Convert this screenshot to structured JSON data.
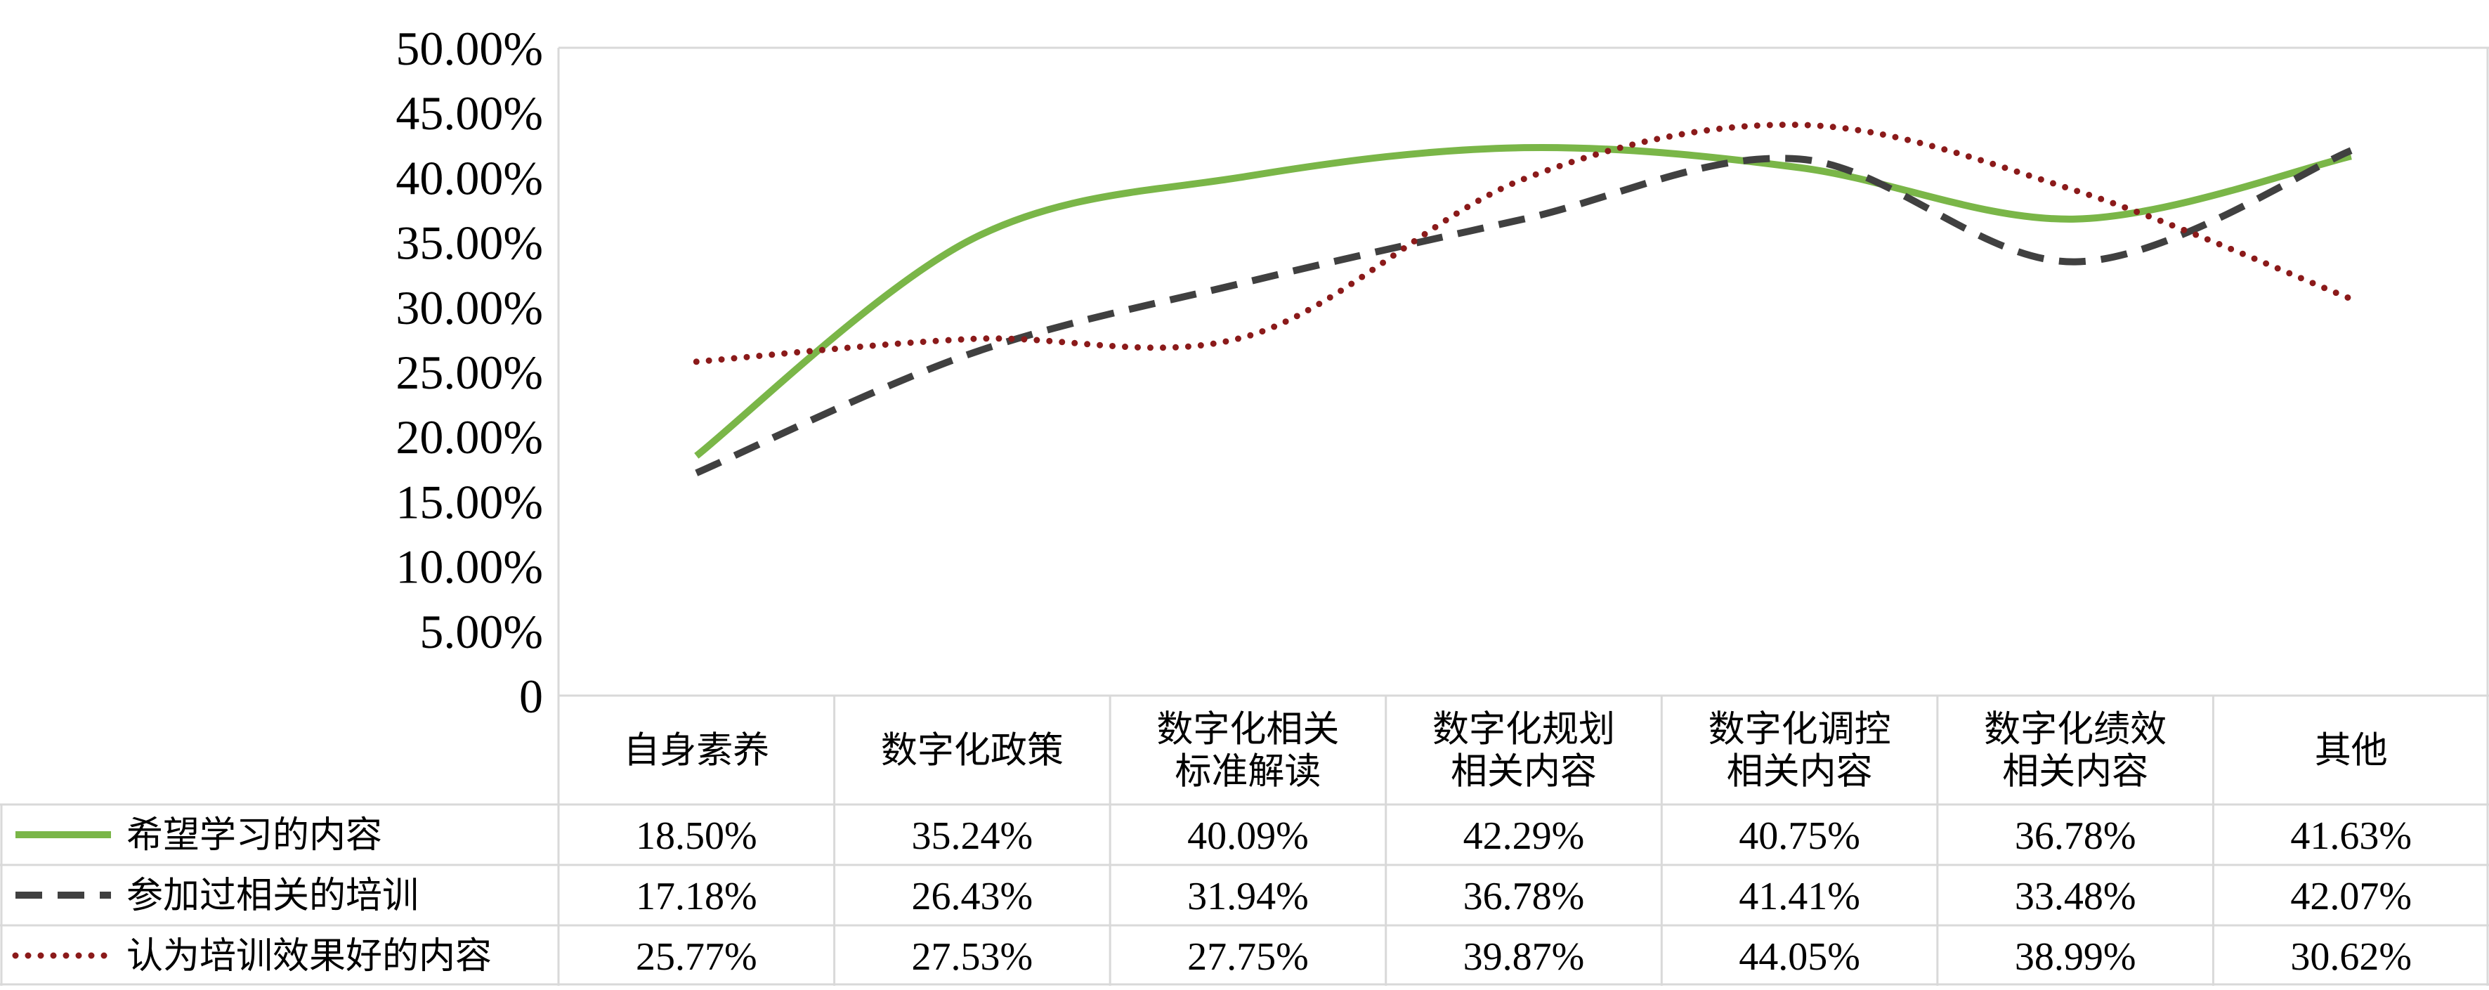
{
  "chart_data": {
    "type": "line",
    "y_ticks": [
      "50.00%",
      "45.00%",
      "40.00%",
      "35.00%",
      "30.00%",
      "25.00%",
      "20.00%",
      "15.00%",
      "10.00%",
      "5.00%",
      "0"
    ],
    "ylim": [
      0,
      50
    ],
    "grid": false,
    "categories": [
      [
        "自身素养"
      ],
      [
        "数字化政策"
      ],
      [
        "数字化相关",
        "标准解读"
      ],
      [
        "数字化规划",
        "相关内容"
      ],
      [
        "数字化调控",
        "相关内容"
      ],
      [
        "数字化绩效",
        "相关内容"
      ],
      [
        "其他"
      ]
    ],
    "series": [
      {
        "name": "希望学习的内容",
        "values": [
          18.5,
          35.24,
          40.09,
          42.29,
          40.75,
          36.78,
          41.63
        ],
        "labels": [
          "18.50%",
          "35.24%",
          "40.09%",
          "42.29%",
          "40.75%",
          "36.78%",
          "41.63%"
        ],
        "color": "#7ab648",
        "style": "solid"
      },
      {
        "name": "参加过相关的培训",
        "values": [
          17.18,
          26.43,
          31.94,
          36.78,
          41.41,
          33.48,
          42.07
        ],
        "labels": [
          "17.18%",
          "26.43%",
          "31.94%",
          "36.78%",
          "41.41%",
          "33.48%",
          "42.07%"
        ],
        "color": "#404040",
        "style": "dashed"
      },
      {
        "name": "认为培训效果好的内容",
        "values": [
          25.77,
          27.53,
          27.75,
          39.87,
          44.05,
          38.99,
          30.62
        ],
        "labels": [
          "25.77%",
          "27.53%",
          "27.75%",
          "39.87%",
          "44.05%",
          "38.99%",
          "30.62%"
        ],
        "color": "#8b1a1a",
        "style": "dotted"
      }
    ],
    "legend_placement": "table-rows"
  }
}
